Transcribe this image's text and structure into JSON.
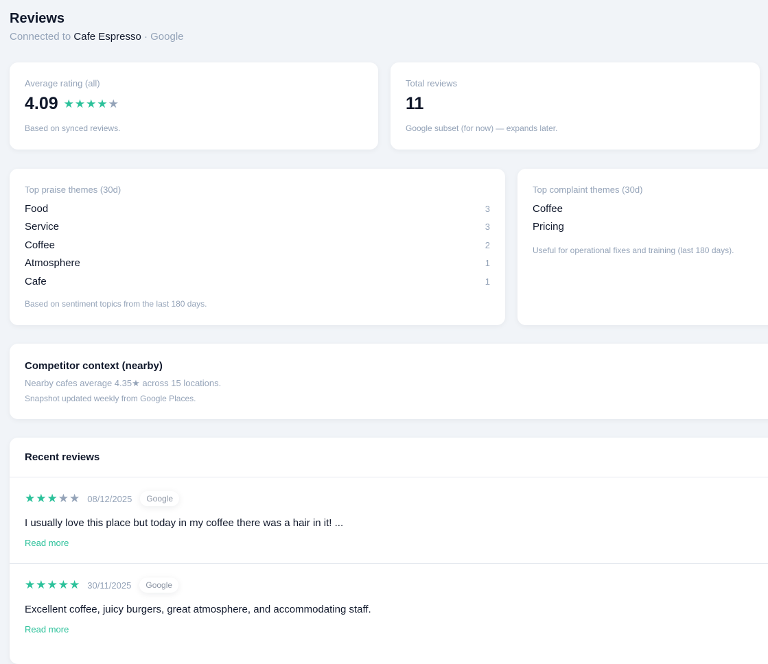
{
  "header": {
    "title": "Reviews",
    "connected_prefix": "Connected to",
    "business": "Cafe Espresso",
    "source": "· Google"
  },
  "avg_card": {
    "label": "Average rating (all)",
    "value": "4.09",
    "stars": 4,
    "note": "Based on synced reviews."
  },
  "total_card": {
    "label": "Total reviews",
    "value": "11",
    "note": "Google subset (for now) — expands later."
  },
  "praise": {
    "label": "Top praise themes (30d)",
    "items": [
      {
        "name": "Food",
        "count": "3"
      },
      {
        "name": "Service",
        "count": "3"
      },
      {
        "name": "Coffee",
        "count": "2"
      },
      {
        "name": "Atmosphere",
        "count": "1"
      },
      {
        "name": "Cafe",
        "count": "1"
      }
    ],
    "note": "Based on sentiment topics from the last 180 days."
  },
  "complaint": {
    "label": "Top complaint themes (30d)",
    "items": [
      {
        "name": "Coffee"
      },
      {
        "name": "Pricing"
      }
    ],
    "note": "Useful for operational fixes and training (last 180 days)."
  },
  "competitor": {
    "title": "Competitor context (nearby)",
    "line": "Nearby cafes average 4.35★ across 15 locations.",
    "note": "Snapshot updated weekly from Google Places."
  },
  "recent": {
    "title": "Recent reviews",
    "read_more": "Read more",
    "items": [
      {
        "stars": 3,
        "date": "08/12/2025",
        "source": "Google",
        "text": "I usually love this place but today in my coffee there was a hair in it! ..."
      },
      {
        "stars": 5,
        "date": "30/11/2025",
        "source": "Google",
        "text": "Excellent coffee, juicy burgers, great atmosphere, and accommodating staff."
      }
    ]
  },
  "colors": {
    "accent": "#2bc19a",
    "muted": "#94a3b8",
    "background": "#f1f4f8"
  }
}
